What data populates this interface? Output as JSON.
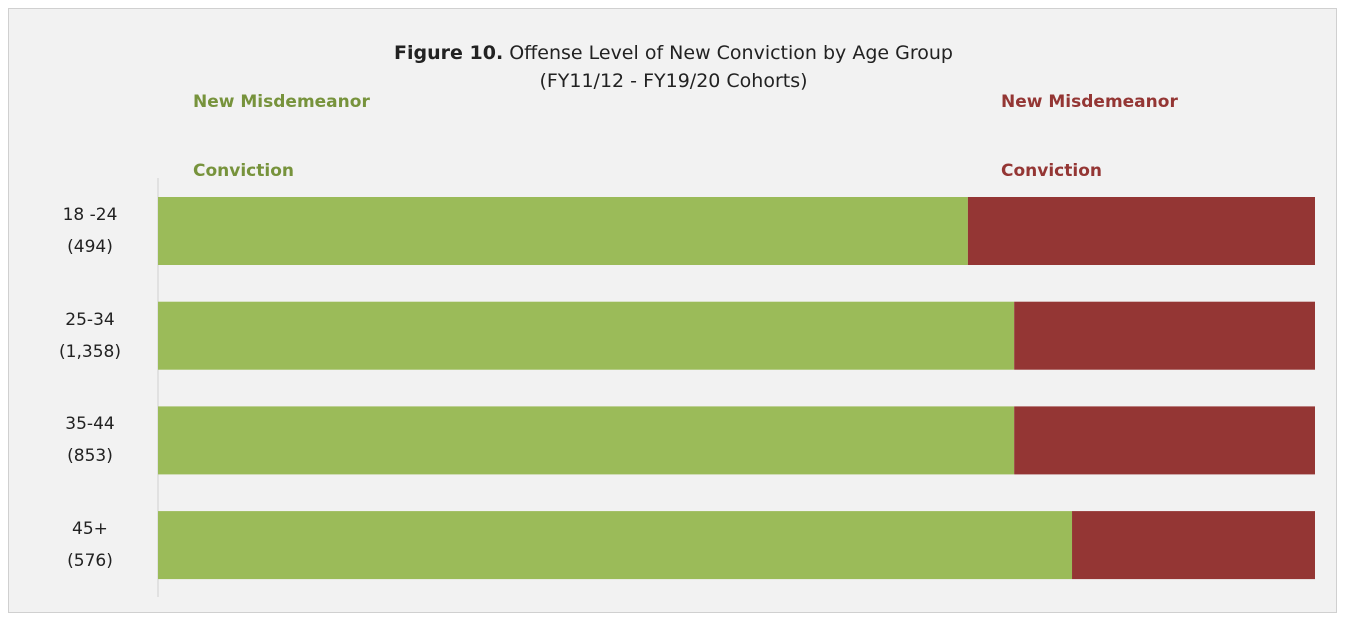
{
  "chart_data": {
    "type": "stacked_barh",
    "title_label": "Figure 10.",
    "title": "Offense Level of New Conviction by Age Group",
    "subtitle": "(FY11/12 - FY19/20 Cohorts)",
    "categories": [
      "18 -24 (494)",
      "25-34 (1,358)",
      "35-44 (853)",
      "45+ (576)"
    ],
    "series": [
      {
        "name": "New Misdemeanor Conviction",
        "color": "#9bbb59",
        "label_color": "#77933c",
        "values": [
          70,
          74,
          74,
          79
        ]
      },
      {
        "name": "New Misdemeanor Conviction",
        "color": "#943634",
        "label_color": "#943634",
        "values": [
          30,
          26,
          26,
          21
        ]
      }
    ],
    "xlim": [
      0,
      100
    ]
  }
}
